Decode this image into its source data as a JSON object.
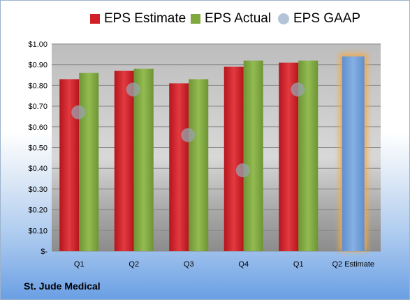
{
  "chart_data": {
    "type": "bar",
    "categories": [
      "Q1",
      "Q2",
      "Q3",
      "Q4",
      "Q1",
      "Q2 Estimate"
    ],
    "series": [
      {
        "name": "EPS Estimate",
        "values": [
          0.83,
          0.87,
          0.81,
          0.89,
          0.91,
          null
        ],
        "color": "#d21f26"
      },
      {
        "name": "EPS Actual",
        "values": [
          0.86,
          0.88,
          0.83,
          0.92,
          0.92,
          null
        ],
        "color": "#7fa83e"
      },
      {
        "name": "EPS GAAP",
        "values": [
          0.67,
          0.78,
          0.56,
          0.39,
          0.78,
          null
        ],
        "color": "#b4c3d6"
      }
    ],
    "projected": {
      "category": "Q2 Estimate",
      "value": 0.94,
      "color": "#6e9fd8",
      "glow": "#f3a94a"
    },
    "y_ticks": [
      "$-",
      "$0.10",
      "$0.20",
      "$0.30",
      "$0.40",
      "$0.50",
      "$0.60",
      "$0.70",
      "$0.80",
      "$0.90",
      "$1.00"
    ],
    "ylim": [
      0,
      1.0
    ],
    "grid": true,
    "legend_position": "top"
  },
  "company": "St. Jude Medical"
}
